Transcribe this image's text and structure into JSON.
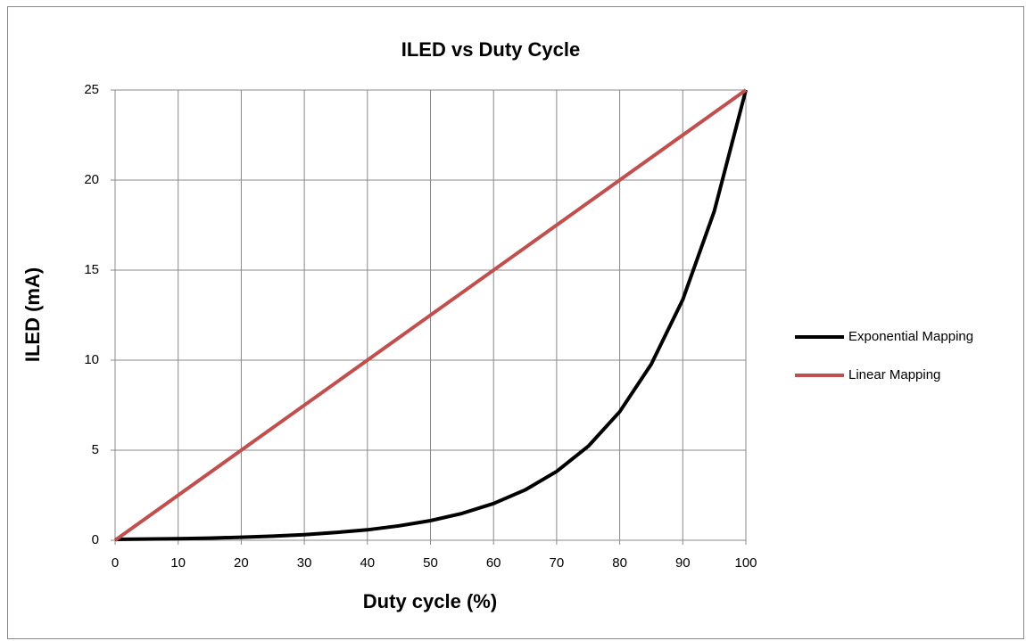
{
  "chart_data": {
    "type": "line",
    "title": "ILED vs Duty Cycle",
    "x_label": "Duty cycle (%)",
    "y_label": "ILED (mA)",
    "xlim": [
      0,
      100
    ],
    "xticks": [
      0,
      10,
      20,
      30,
      40,
      50,
      60,
      70,
      80,
      90,
      100
    ],
    "ylim": [
      0,
      25
    ],
    "yticks": [
      0,
      5,
      10,
      15,
      20,
      25
    ],
    "grid": true,
    "legend": "right",
    "series": [
      {
        "name": "Exponential Mapping",
        "color": "#000000",
        "x": [
          0,
          5,
          10,
          15,
          20,
          25,
          30,
          35,
          40,
          45,
          50,
          55,
          60,
          65,
          70,
          75,
          80,
          85,
          90,
          95,
          100
        ],
        "values": [
          0.05,
          0.07,
          0.09,
          0.12,
          0.17,
          0.23,
          0.31,
          0.43,
          0.58,
          0.8,
          1.09,
          1.49,
          2.04,
          2.79,
          3.82,
          5.22,
          7.14,
          9.77,
          13.36,
          18.27,
          25
        ]
      },
      {
        "name": "Linear Mapping",
        "color": "#c0504d",
        "x": [
          0,
          100
        ],
        "values": [
          0,
          25
        ]
      }
    ]
  }
}
